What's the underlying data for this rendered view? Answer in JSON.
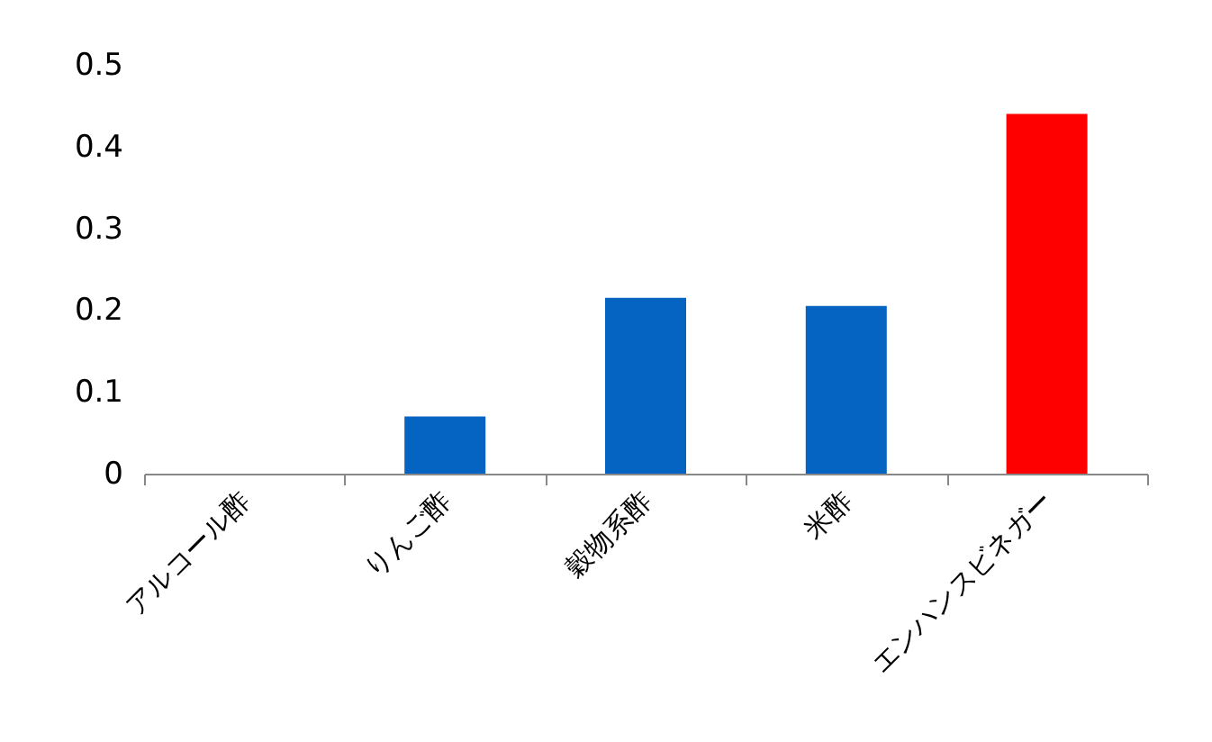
{
  "chart_data": {
    "type": "bar",
    "categories": [
      "アルコール酢",
      "りんご酢",
      "穀物系酢",
      "米酢",
      "エンハンスビネガー"
    ],
    "values": [
      0,
      0.07,
      0.215,
      0.205,
      0.44
    ],
    "colors": [
      "#0563c1",
      "#0563c1",
      "#0563c1",
      "#0563c1",
      "#ff0000"
    ],
    "ylim": [
      0,
      0.5
    ],
    "yticks": [
      0,
      0.1,
      0.2,
      0.3,
      0.4,
      0.5
    ],
    "grid": false,
    "legend": false
  }
}
